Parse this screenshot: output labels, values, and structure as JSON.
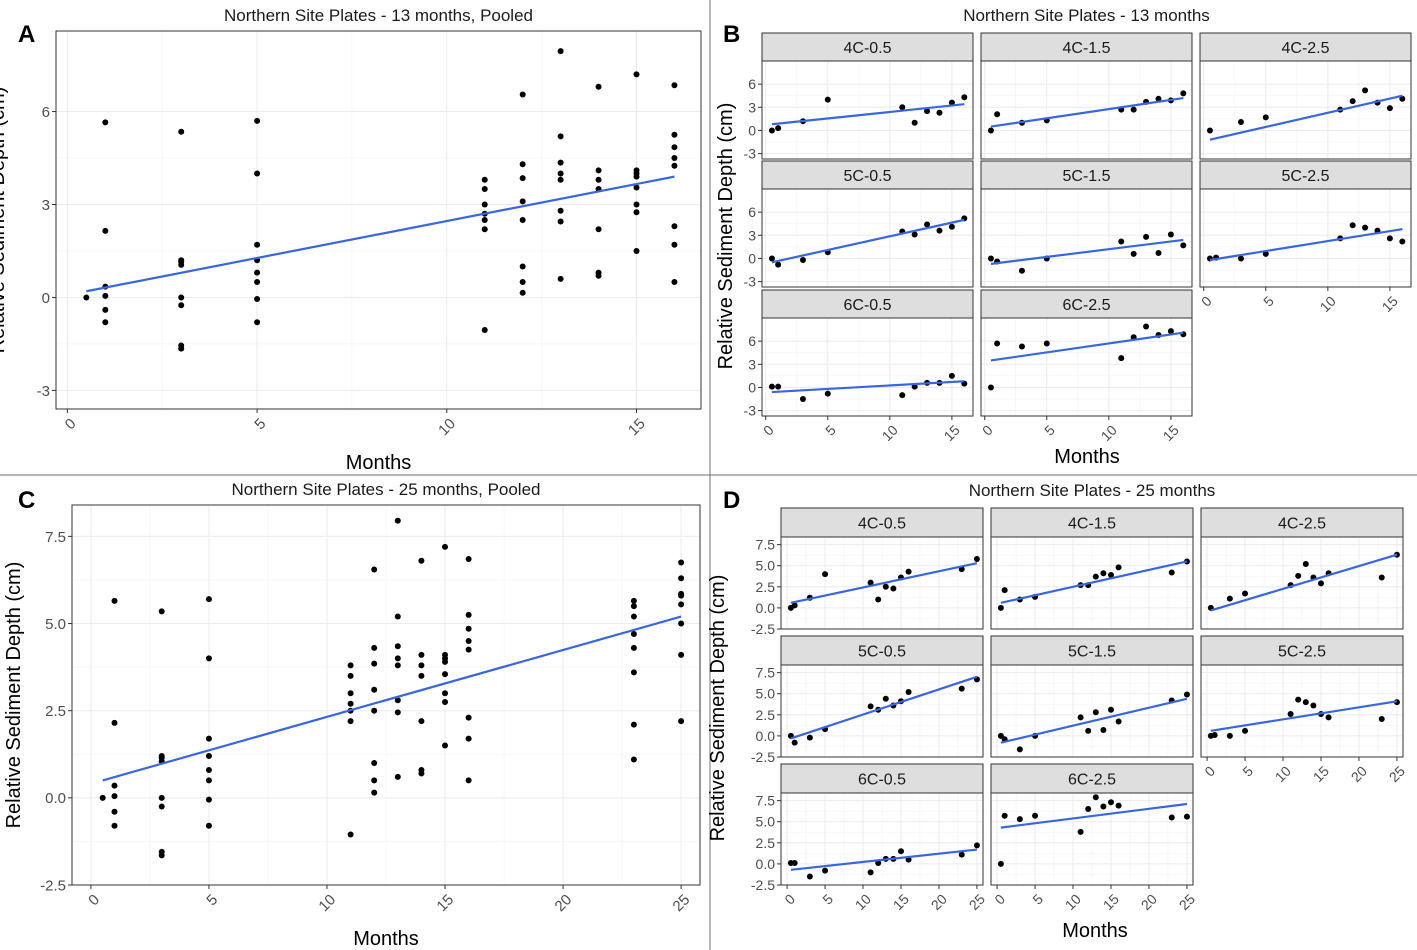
{
  "figure": {
    "panel_letters": [
      "A",
      "B",
      "C",
      "D"
    ],
    "colors": {
      "fit_line": "#3a66dd",
      "point": "#000000",
      "strip_bg": "#dedede",
      "grid": "#ebebeb",
      "axis_text": "#4d4d4d"
    }
  },
  "chart_data": [
    {
      "id": "A",
      "type": "scatter",
      "title": "Northern Site Plates - 13 months, Pooled",
      "xlabel": "Months",
      "ylabel": "Relative Sediment Depth (cm)",
      "xlim": [
        -0.3,
        16.7
      ],
      "ylim": [
        -3.6,
        8.6
      ],
      "x_ticks": [
        0,
        5,
        10,
        15
      ],
      "x_tick_labels": [
        "0",
        "5",
        "10",
        "15"
      ],
      "y_ticks": [
        -3,
        0,
        3,
        6
      ],
      "y_tick_labels": [
        "-3",
        "0",
        "3",
        "6"
      ],
      "fit": {
        "x": [
          0.5,
          16
        ],
        "y": [
          0.2,
          3.9
        ]
      },
      "x": [
        0.5,
        1,
        1,
        1,
        1,
        1,
        1,
        3,
        3,
        3,
        3,
        3,
        3,
        3,
        3,
        5,
        5,
        5,
        5,
        5,
        5,
        5,
        5,
        11,
        11,
        11,
        11,
        11,
        11,
        11,
        12,
        12,
        12,
        12,
        12,
        12,
        12,
        12,
        13,
        13,
        13,
        13,
        13,
        13,
        13,
        13,
        14,
        14,
        14,
        14,
        14,
        14,
        14,
        15,
        15,
        15,
        15,
        15,
        15,
        15,
        15,
        16,
        16,
        16,
        16,
        16,
        16,
        16,
        16
      ],
      "y": [
        0,
        5.65,
        2.15,
        0.35,
        0.05,
        -0.4,
        -0.8,
        5.35,
        1.15,
        1.05,
        0,
        -0.25,
        -1.55,
        -1.65,
        1.2,
        5.7,
        4,
        1.7,
        1.2,
        0.8,
        0.5,
        -0.05,
        -0.8,
        3.8,
        3.5,
        3,
        2.7,
        2.5,
        2.2,
        -1.05,
        6.55,
        4.3,
        3.85,
        3.1,
        2.5,
        1,
        0.5,
        0.15,
        7.95,
        5.2,
        4.35,
        4.0,
        3.8,
        2.8,
        2.45,
        0.6,
        6.8,
        4.1,
        3.8,
        3.5,
        2.2,
        0.8,
        0.7,
        7.2,
        4.1,
        3.9,
        3.55,
        3.0,
        2.75,
        1.5,
        4.0,
        6.85,
        5.25,
        4.85,
        4.5,
        4.25,
        2.3,
        1.7,
        0.5
      ]
    },
    {
      "id": "B",
      "type": "scatter",
      "title": "Northern Site Plates - 13 months",
      "xlabel": "Months",
      "ylabel": "Relative Sediment Depth (cm)",
      "xlim": [
        -0.3,
        16.7
      ],
      "ylim": [
        -3.7,
        9.0
      ],
      "x_ticks": [
        0,
        5,
        10,
        15
      ],
      "x_tick_labels": [
        "0",
        "5",
        "10",
        "15"
      ],
      "y_ticks": [
        -3,
        0,
        3,
        6
      ],
      "y_tick_labels": [
        "-3",
        "0",
        "3",
        "6"
      ],
      "facets": [
        {
          "label": "4C-0.5",
          "x": [
            0.5,
            1,
            3,
            5,
            11,
            12,
            13,
            14,
            15,
            16
          ],
          "y": [
            0,
            0.3,
            1.2,
            4,
            3,
            1,
            2.5,
            2.3,
            3.6,
            4.3
          ],
          "fit": {
            "x": [
              0.5,
              16
            ],
            "y": [
              0.8,
              3.4
            ]
          }
        },
        {
          "label": "4C-1.5",
          "x": [
            0.5,
            1,
            3,
            5,
            11,
            12,
            13,
            14,
            15,
            16
          ],
          "y": [
            0,
            2.1,
            1,
            1.3,
            2.7,
            2.7,
            3.7,
            4.1,
            3.9,
            4.8
          ],
          "fit": {
            "x": [
              0.5,
              16
            ],
            "y": [
              0.5,
              4.2
            ]
          }
        },
        {
          "label": "4C-2.5",
          "x": [
            0.5,
            3,
            5,
            11,
            12,
            13,
            14,
            15,
            16
          ],
          "y": [
            0,
            1.1,
            1.7,
            2.7,
            3.8,
            5.2,
            3.6,
            2.9,
            4.1
          ],
          "fit": {
            "x": [
              0.5,
              16
            ],
            "y": [
              -1.2,
              4.5
            ]
          }
        },
        {
          "label": "5C-0.5",
          "x": [
            0.5,
            1,
            3,
            5,
            11,
            12,
            13,
            14,
            15,
            16
          ],
          "y": [
            0,
            -0.8,
            -0.2,
            0.8,
            3.5,
            3.1,
            4.4,
            3.6,
            4.1,
            5.2
          ],
          "fit": {
            "x": [
              0.5,
              16
            ],
            "y": [
              -0.5,
              5.0
            ]
          }
        },
        {
          "label": "5C-1.5",
          "x": [
            0.5,
            1,
            3,
            5,
            11,
            12,
            13,
            14,
            15,
            16
          ],
          "y": [
            0,
            -0.4,
            -1.6,
            0,
            2.2,
            0.6,
            2.8,
            0.7,
            3.1,
            1.7
          ],
          "fit": {
            "x": [
              0.5,
              16
            ],
            "y": [
              -0.7,
              2.4
            ]
          }
        },
        {
          "label": "5C-2.5",
          "x": [
            0.5,
            1,
            3,
            5,
            11,
            12,
            13,
            14,
            15,
            16
          ],
          "y": [
            0,
            0.1,
            0,
            0.6,
            2.6,
            4.3,
            4,
            3.6,
            2.6,
            2.2
          ],
          "fit": {
            "x": [
              0.5,
              16
            ],
            "y": [
              -0.2,
              3.8
            ]
          }
        },
        {
          "label": "6C-0.5",
          "x": [
            0.5,
            1,
            3,
            5,
            11,
            12,
            13,
            14,
            15,
            16
          ],
          "y": [
            0.1,
            0.1,
            -1.5,
            -0.8,
            -1,
            0.1,
            0.6,
            0.6,
            1.5,
            0.5
          ],
          "fit": {
            "x": [
              0.5,
              16
            ],
            "y": [
              -0.6,
              0.8
            ]
          }
        },
        {
          "label": "6C-2.5",
          "x": [
            0.5,
            1,
            3,
            5,
            11,
            12,
            13,
            14,
            15,
            16
          ],
          "y": [
            0,
            5.7,
            5.3,
            5.7,
            3.8,
            6.5,
            7.9,
            6.8,
            7.3,
            6.9
          ],
          "fit": {
            "x": [
              0.5,
              16
            ],
            "y": [
              3.5,
              7.1
            ]
          }
        }
      ]
    },
    {
      "id": "C",
      "type": "scatter",
      "title": "Northern Site Plates - 25 months, Pooled",
      "xlabel": "Months",
      "ylabel": "Relative Sediment Depth (cm)",
      "xlim": [
        -0.8,
        25.8
      ],
      "ylim": [
        -2.5,
        8.4
      ],
      "x_ticks": [
        0,
        5,
        10,
        15,
        20,
        25
      ],
      "x_tick_labels": [
        "0",
        "5",
        "10",
        "15",
        "20",
        "25"
      ],
      "y_ticks": [
        -2.5,
        0,
        2.5,
        5,
        7.5
      ],
      "y_tick_labels": [
        "-2.5",
        "0.0",
        "2.5",
        "5.0",
        "7.5"
      ],
      "fit": {
        "x": [
          0.5,
          25
        ],
        "y": [
          0.5,
          5.2
        ]
      },
      "x": [
        0.5,
        1,
        1,
        1,
        1,
        1,
        1,
        3,
        3,
        3,
        3,
        3,
        3,
        3,
        3,
        5,
        5,
        5,
        5,
        5,
        5,
        5,
        5,
        11,
        11,
        11,
        11,
        11,
        11,
        11,
        12,
        12,
        12,
        12,
        12,
        12,
        12,
        12,
        13,
        13,
        13,
        13,
        13,
        13,
        13,
        13,
        14,
        14,
        14,
        14,
        14,
        14,
        14,
        15,
        15,
        15,
        15,
        15,
        15,
        15,
        15,
        16,
        16,
        16,
        16,
        16,
        16,
        16,
        16,
        23,
        23,
        23,
        23,
        23,
        23,
        23,
        23,
        25,
        25,
        25,
        25,
        25,
        25,
        25,
        25
      ],
      "y": [
        0,
        5.65,
        2.15,
        0.35,
        0.05,
        -0.4,
        -0.8,
        5.35,
        1.15,
        1.05,
        0,
        -0.25,
        -1.55,
        -1.65,
        1.2,
        5.7,
        4,
        1.7,
        1.2,
        0.8,
        0.5,
        -0.05,
        -0.8,
        3.8,
        3.5,
        3,
        2.7,
        2.5,
        2.2,
        -1.05,
        6.55,
        4.3,
        3.85,
        3.1,
        2.5,
        1,
        0.5,
        0.15,
        7.95,
        5.2,
        4.35,
        4.0,
        3.8,
        2.8,
        2.45,
        0.6,
        6.8,
        4.1,
        3.8,
        3.5,
        2.2,
        0.8,
        0.7,
        7.2,
        4.1,
        3.9,
        3.55,
        3.0,
        2.75,
        1.5,
        4.0,
        6.85,
        5.25,
        4.85,
        4.5,
        4.25,
        2.3,
        1.7,
        0.5,
        5.65,
        5.5,
        4.7,
        4.3,
        3.6,
        2.1,
        1.1,
        5.2,
        6.75,
        6.3,
        5.8,
        5.55,
        5.0,
        4.1,
        2.2,
        5.85
      ]
    },
    {
      "id": "D",
      "type": "scatter",
      "title": "Northern Site Plates - 25 months",
      "xlabel": "Months",
      "ylabel": "Relative Sediment Depth (cm)",
      "xlim": [
        -0.8,
        25.8
      ],
      "ylim": [
        -2.5,
        8.4
      ],
      "x_ticks": [
        0,
        5,
        10,
        15,
        20,
        25
      ],
      "x_tick_labels": [
        "0",
        "5",
        "10",
        "15",
        "20",
        "25"
      ],
      "y_ticks": [
        -2.5,
        0,
        2.5,
        5,
        7.5
      ],
      "y_tick_labels": [
        "-2.5",
        "0.0",
        "2.5",
        "5.0",
        "7.5"
      ],
      "facets": [
        {
          "label": "4C-0.5",
          "x": [
            0.5,
            1,
            3,
            5,
            11,
            12,
            13,
            14,
            15,
            16,
            23,
            25
          ],
          "y": [
            0,
            0.3,
            1.2,
            4,
            3,
            1,
            2.5,
            2.3,
            3.6,
            4.3,
            4.6,
            5.8
          ],
          "fit": {
            "x": [
              0.5,
              25
            ],
            "y": [
              0.6,
              5.3
            ]
          }
        },
        {
          "label": "4C-1.5",
          "x": [
            0.5,
            1,
            3,
            5,
            11,
            12,
            13,
            14,
            15,
            16,
            23,
            25
          ],
          "y": [
            0,
            2.1,
            1,
            1.3,
            2.7,
            2.7,
            3.7,
            4.1,
            3.9,
            4.8,
            4.2,
            5.5
          ],
          "fit": {
            "x": [
              0.5,
              25
            ],
            "y": [
              0.6,
              5.5
            ]
          }
        },
        {
          "label": "4C-2.5",
          "x": [
            0.5,
            3,
            5,
            11,
            12,
            13,
            14,
            15,
            16,
            23,
            25
          ],
          "y": [
            0,
            1.1,
            1.7,
            2.7,
            3.8,
            5.2,
            3.6,
            2.9,
            4.1,
            3.6,
            6.3
          ],
          "fit": {
            "x": [
              0.5,
              25
            ],
            "y": [
              -0.3,
              6.3
            ]
          }
        },
        {
          "label": "5C-0.5",
          "x": [
            0.5,
            1,
            3,
            5,
            11,
            12,
            13,
            14,
            15,
            16,
            23,
            25
          ],
          "y": [
            0,
            -0.8,
            -0.2,
            0.8,
            3.5,
            3.1,
            4.4,
            3.6,
            4.1,
            5.2,
            5.6,
            6.7
          ],
          "fit": {
            "x": [
              0.5,
              25
            ],
            "y": [
              -0.3,
              7.0
            ]
          }
        },
        {
          "label": "5C-1.5",
          "x": [
            0.5,
            1,
            3,
            5,
            11,
            12,
            13,
            14,
            15,
            16,
            23,
            25
          ],
          "y": [
            0,
            -0.4,
            -1.6,
            0,
            2.2,
            0.6,
            2.8,
            0.7,
            3.1,
            1.7,
            4.2,
            4.9
          ],
          "fit": {
            "x": [
              0.5,
              25
            ],
            "y": [
              -0.8,
              4.4
            ]
          }
        },
        {
          "label": "5C-2.5",
          "x": [
            0.5,
            1,
            3,
            5,
            11,
            12,
            13,
            14,
            15,
            16,
            23,
            25
          ],
          "y": [
            0,
            0.1,
            0,
            0.6,
            2.6,
            4.3,
            4,
            3.6,
            2.6,
            2.2,
            2,
            4
          ],
          "fit": {
            "x": [
              0.5,
              25
            ],
            "y": [
              0.6,
              4.1
            ]
          }
        },
        {
          "label": "6C-0.5",
          "x": [
            0.5,
            1,
            3,
            5,
            11,
            12,
            13,
            14,
            15,
            16,
            23,
            25
          ],
          "y": [
            0.1,
            0.1,
            -1.5,
            -0.8,
            -1,
            0.1,
            0.6,
            0.6,
            1.5,
            0.5,
            1.1,
            2.2
          ],
          "fit": {
            "x": [
              0.5,
              25
            ],
            "y": [
              -0.7,
              1.7
            ]
          }
        },
        {
          "label": "6C-2.5",
          "x": [
            0.5,
            1,
            3,
            5,
            11,
            12,
            13,
            14,
            15,
            16,
            23,
            25
          ],
          "y": [
            0,
            5.7,
            5.3,
            5.7,
            3.8,
            6.5,
            7.9,
            6.8,
            7.3,
            6.9,
            5.5,
            5.6
          ],
          "fit": {
            "x": [
              0.5,
              25
            ],
            "y": [
              4.3,
              7.1
            ]
          }
        }
      ]
    }
  ]
}
